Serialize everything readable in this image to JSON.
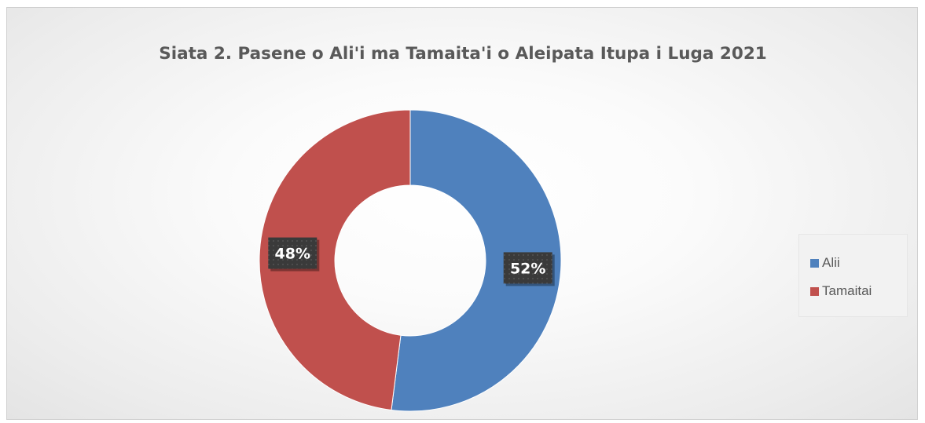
{
  "chart_data": {
    "type": "pie",
    "variant": "doughnut",
    "title": "Siata 2. Pasene o Ali'i ma Tamaita'i o Aleipata Itupa i Luga  2021",
    "slices": [
      {
        "name": "Alii",
        "value": 52,
        "label": "52%",
        "color": "#4f81bd"
      },
      {
        "name": "Tamaitai",
        "value": 48,
        "label": "48%",
        "color": "#c0504d"
      }
    ],
    "legend_position": "right"
  }
}
